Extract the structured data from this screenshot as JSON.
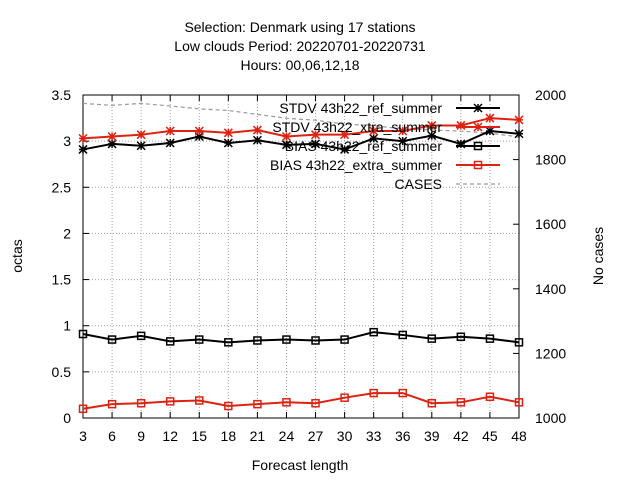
{
  "chart_data": {
    "type": "line",
    "title_lines": [
      "Selection: Denmark using    17 stations",
      "Low clouds   Period: 20220701-20220731",
      "Hours:  00,06,12,18"
    ],
    "xlabel": "Forecast length",
    "ylabel": "octas",
    "y2label": "No cases",
    "x": [
      3,
      6,
      9,
      12,
      15,
      18,
      21,
      24,
      27,
      30,
      33,
      36,
      39,
      42,
      45,
      48
    ],
    "x_ticks": [
      "3",
      "6",
      "9",
      "12",
      "15",
      "18",
      "21",
      "24",
      "27",
      "30",
      "33",
      "36",
      "39",
      "42",
      "45",
      "48"
    ],
    "ylim": [
      0,
      3.5
    ],
    "y_ticks": [
      "0",
      "0.5",
      "1",
      "1.5",
      "2",
      "2.5",
      "3",
      "3.5"
    ],
    "y2lim": [
      1000,
      2000
    ],
    "y2_ticks": [
      "1000",
      "1200",
      "1400",
      "1600",
      "1800",
      "2000"
    ],
    "grid": true,
    "legend_position": "top-right",
    "series": [
      {
        "name": "STDV 43h22_ref_summer",
        "legend_label": "STDV 43h22_ref_summer",
        "axis": "y1",
        "color": "#000000",
        "marker": "star",
        "dashed": false,
        "values": [
          2.91,
          2.97,
          2.95,
          2.98,
          3.05,
          2.98,
          3.01,
          2.96,
          2.97,
          2.91,
          3.03,
          3.0,
          3.06,
          2.97,
          3.11,
          3.08
        ]
      },
      {
        "name": "STDV 43h22_xtra_summer",
        "legend_label": "STDV 43h22_xtra_summer",
        "axis": "y1",
        "color": "#dd2211",
        "marker": "star",
        "dashed": false,
        "values": [
          3.03,
          3.05,
          3.07,
          3.11,
          3.11,
          3.09,
          3.12,
          3.05,
          3.07,
          3.07,
          3.11,
          3.11,
          3.17,
          3.17,
          3.25,
          3.23
        ]
      },
      {
        "name": "BIAS 43h22_ref_summer",
        "legend_label": "BIAS 43h22_ref_summer",
        "axis": "y1",
        "color": "#000000",
        "marker": "square",
        "dashed": false,
        "values": [
          0.91,
          0.85,
          0.89,
          0.83,
          0.85,
          0.82,
          0.84,
          0.85,
          0.84,
          0.85,
          0.93,
          0.9,
          0.86,
          0.88,
          0.86,
          0.82
        ]
      },
      {
        "name": "BIAS 43h22_extra_summer",
        "legend_label": "BIAS 43h22_extra_summer",
        "axis": "y1",
        "color": "#dd2211",
        "marker": "square",
        "dashed": false,
        "values": [
          0.1,
          0.15,
          0.16,
          0.18,
          0.19,
          0.13,
          0.15,
          0.17,
          0.16,
          0.22,
          0.27,
          0.27,
          0.16,
          0.17,
          0.23,
          0.17
        ]
      },
      {
        "name": "CASES",
        "legend_label": "CASES",
        "axis": "y2",
        "color": "#999999",
        "marker": "none",
        "dashed": true,
        "values": [
          1974,
          1968,
          1974,
          1966,
          1957,
          1952,
          1940,
          1928,
          1922,
          1910,
          1905,
          1895,
          1892,
          1888,
          1882,
          1870
        ]
      }
    ]
  }
}
